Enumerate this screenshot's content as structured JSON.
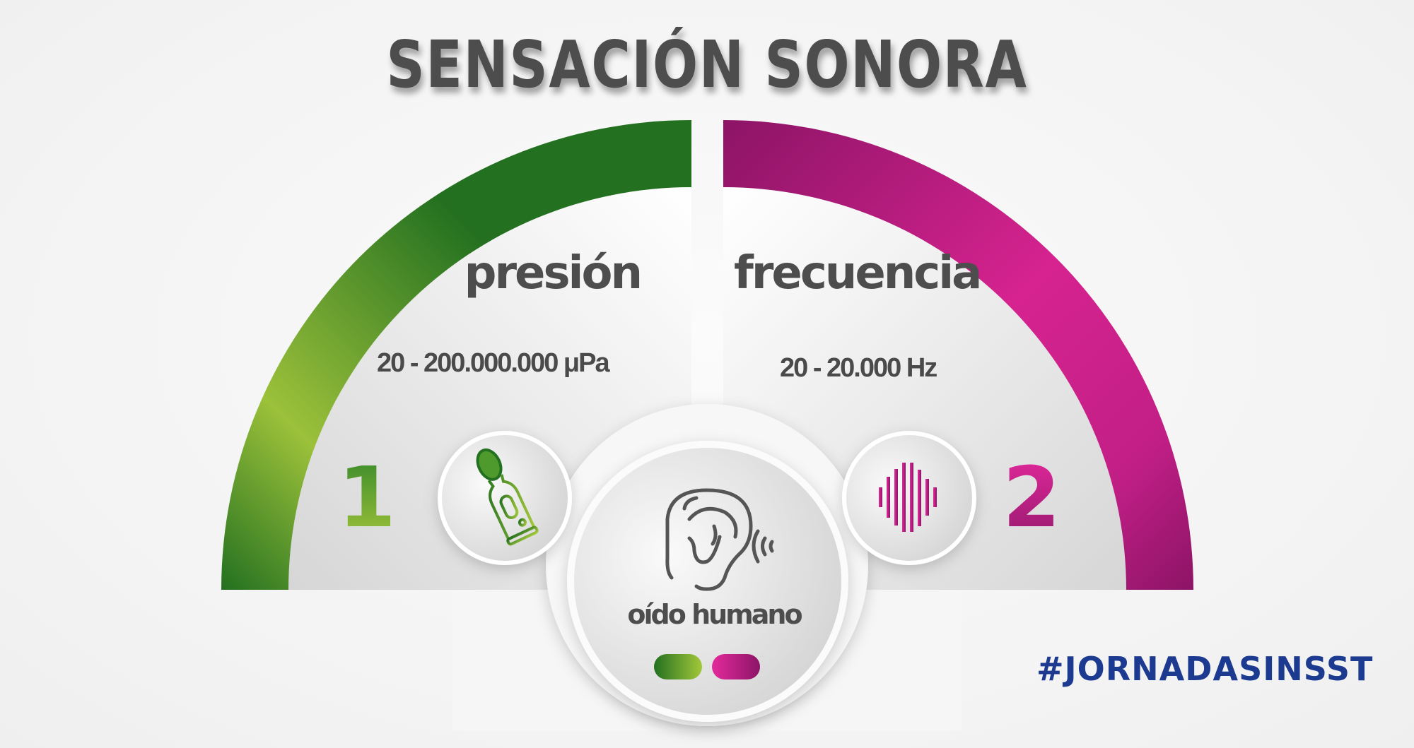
{
  "title": "SENSACIÓN SONORA",
  "left": {
    "label": "presión",
    "range": "20 - 200.000.000 μPa",
    "number": "1",
    "icon": "sound-level-meter-icon",
    "color_start": "#9cc13a",
    "color_end": "#237020"
  },
  "right": {
    "label": "frecuencia",
    "range": "20 - 20.000 Hz",
    "number": "2",
    "icon": "sound-wave-icon",
    "color_start": "#8c1466",
    "color_end": "#d6238f"
  },
  "center": {
    "label": "oído humano",
    "icon": "ear-icon"
  },
  "hashtag": "#JORNADASINSST",
  "colors": {
    "text": "#4d4d4d",
    "hashtag": "#1c3a8f"
  }
}
